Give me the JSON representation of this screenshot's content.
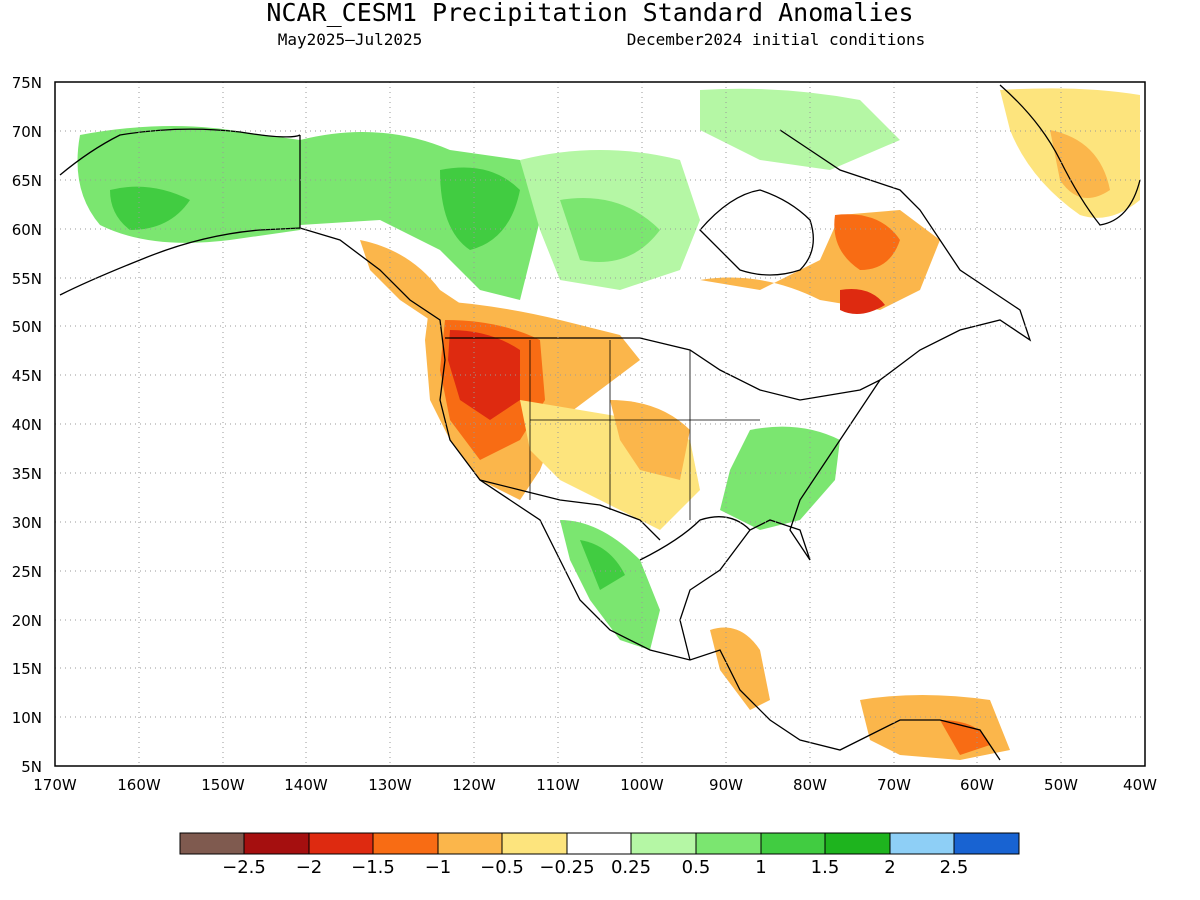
{
  "title": "NCAR_CESM1 Precipitation Standard Anomalies",
  "subtitle_left": "May2025–Jul2025",
  "subtitle_right": "December2024 initial conditions",
  "lat_ticks": [
    "75N",
    "70N",
    "65N",
    "60N",
    "55N",
    "50N",
    "45N",
    "40N",
    "35N",
    "30N",
    "25N",
    "20N",
    "15N",
    "10N",
    "5N"
  ],
  "lon_ticks": [
    "170W",
    "160W",
    "150W",
    "140W",
    "130W",
    "120W",
    "110W",
    "100W",
    "90W",
    "80W",
    "70W",
    "60W",
    "50W",
    "40W"
  ],
  "colorbar": {
    "colors": [
      "#7f5a4f",
      "#a50f0f",
      "#de2a10",
      "#f86c14",
      "#fbb64b",
      "#fde47d",
      "#ffffff",
      "#b5f7a5",
      "#7be670",
      "#41cc41",
      "#1eb41e",
      "#8ecff6",
      "#1863d2"
    ],
    "labels": [
      "−2.5",
      "−2",
      "−1.5",
      "−1",
      "−0.5",
      "−0.25",
      "0.25",
      "0.5",
      "1",
      "1.5",
      "2",
      "2.5"
    ]
  },
  "map": {
    "extent": {
      "lon": [
        -170,
        -40
      ],
      "lat": [
        5,
        75
      ]
    },
    "colors": {
      "land_outline": "#000000",
      "grid": "#999999"
    }
  }
}
